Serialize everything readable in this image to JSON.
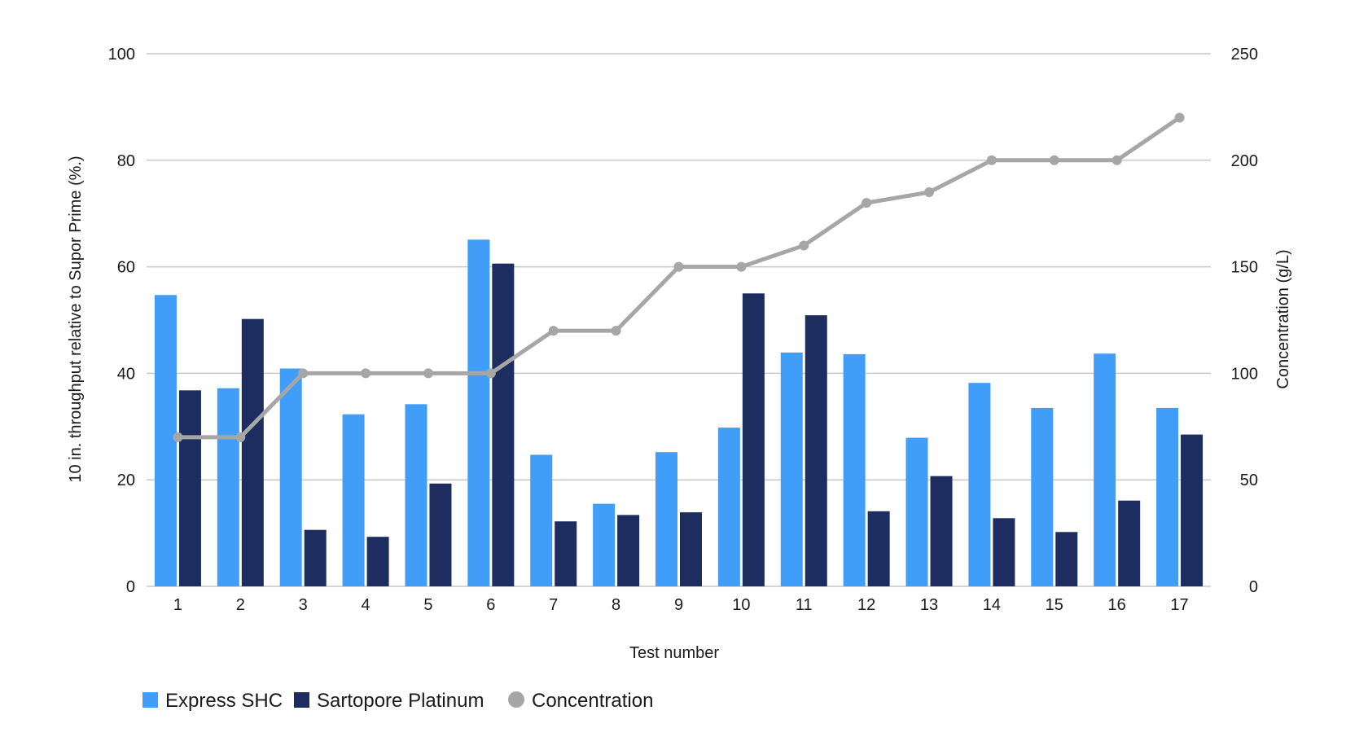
{
  "chart_data": {
    "type": "bar",
    "categories": [
      "1",
      "2",
      "3",
      "4",
      "5",
      "6",
      "7",
      "8",
      "9",
      "10",
      "11",
      "12",
      "13",
      "14",
      "15",
      "16",
      "17"
    ],
    "series": [
      {
        "name": "Express SHC",
        "type": "bar",
        "axis": "left",
        "color": "#419ef8",
        "values": [
          54.7,
          37.2,
          40.9,
          32.3,
          34.2,
          65.1,
          24.7,
          15.5,
          25.2,
          29.8,
          43.9,
          43.6,
          27.9,
          38.2,
          33.5,
          43.7,
          33.5
        ]
      },
      {
        "name": "Sartopore Platinum",
        "type": "bar",
        "axis": "left",
        "color": "#1d2d5f",
        "values": [
          36.8,
          50.2,
          10.6,
          9.3,
          19.3,
          60.6,
          12.2,
          13.4,
          13.9,
          55.0,
          50.9,
          14.1,
          20.7,
          12.8,
          10.2,
          16.1,
          28.5
        ]
      },
      {
        "name": "Concentration",
        "type": "line",
        "axis": "right",
        "color": "#a6a6a6",
        "values": [
          70,
          70,
          100,
          100,
          100,
          100,
          120,
          120,
          150,
          150,
          160,
          180,
          185,
          200,
          200,
          200,
          220
        ]
      }
    ],
    "xlabel": "Test number",
    "ylabel": "10 in.  throughput relative to Supor Prime (%.)",
    "y2label": "Concentration (g/L)",
    "ylim": [
      0,
      100
    ],
    "y2lim": [
      0,
      250
    ],
    "yticks": [
      "0",
      "20",
      "40",
      "60",
      "80",
      "100"
    ],
    "y2ticks": [
      "0",
      "50",
      "100",
      "150",
      "200",
      "250"
    ],
    "grid": true,
    "legend_position": "bottom-left"
  }
}
